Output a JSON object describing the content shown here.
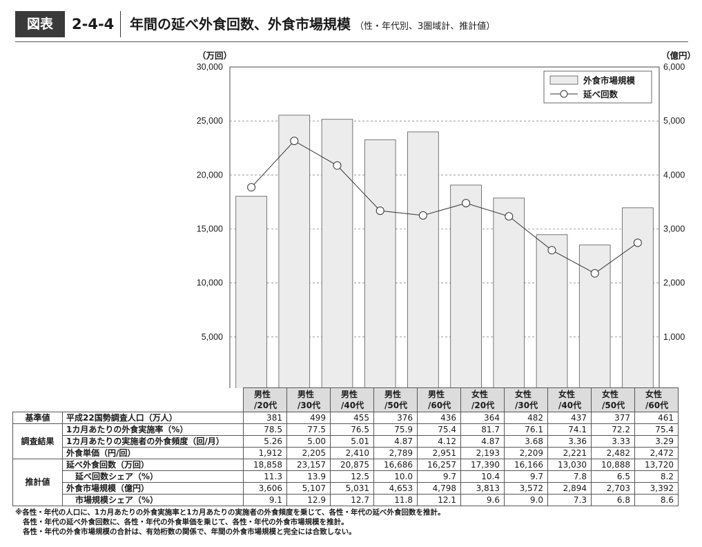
{
  "header": {
    "badge": "図表",
    "number": "2-4-4",
    "title": "年間の延べ外食回数、外食市場規模",
    "subtitle": "（性・年代別、3圏域計、推計値）"
  },
  "chart_data": {
    "type": "bar",
    "categories": [
      "男性/20代",
      "男性/30代",
      "男性/40代",
      "男性/50代",
      "男性/60代",
      "女性/20代",
      "女性/30代",
      "女性/40代",
      "女性/50代",
      "女性/60代"
    ],
    "category_lines": [
      [
        "男性",
        "/20代"
      ],
      [
        "男性",
        "/30代"
      ],
      [
        "男性",
        "/40代"
      ],
      [
        "男性",
        "/50代"
      ],
      [
        "男性",
        "/60代"
      ],
      [
        "女性",
        "/20代"
      ],
      [
        "女性",
        "/30代"
      ],
      [
        "女性",
        "/40代"
      ],
      [
        "女性",
        "/50代"
      ],
      [
        "女性",
        "/60代"
      ]
    ],
    "series": [
      {
        "name": "外食市場規模",
        "kind": "bar",
        "axis": "right",
        "values": [
          3606,
          5107,
          5031,
          4653,
          4798,
          3813,
          3572,
          2894,
          2703,
          3392
        ]
      },
      {
        "name": "延べ回数",
        "kind": "line",
        "axis": "left",
        "values": [
          18858,
          23157,
          20875,
          16686,
          16257,
          17390,
          16166,
          13030,
          10888,
          13720
        ]
      }
    ],
    "left_axis": {
      "unit": "（万回）",
      "ylim": [
        0,
        30000
      ],
      "ticks": [
        "30,000",
        "25,000",
        "20,000",
        "15,000",
        "10,000",
        "5,000"
      ]
    },
    "right_axis": {
      "unit": "（億円）",
      "ylim": [
        0,
        6000
      ],
      "ticks": [
        "6,000",
        "5,000",
        "4,000",
        "3,000",
        "2,000",
        "1,000",
        "0"
      ]
    },
    "grid": "dashed horizontal",
    "legend_position": "top-right",
    "colors": {
      "bar_fill": "#ececec",
      "bar_stroke": "#555555",
      "line": "#333333"
    }
  },
  "table": {
    "groups": [
      {
        "label": "基準値",
        "rows": [
          {
            "label": "平成22国勢調査人口（万人）",
            "values": [
              "381",
              "499",
              "455",
              "376",
              "436",
              "364",
              "482",
              "437",
              "377",
              "461"
            ]
          }
        ]
      },
      {
        "label": "調査結果",
        "rows": [
          {
            "label": "1カ月あたりの外食実施率（%）",
            "values": [
              "78.5",
              "77.5",
              "76.5",
              "75.9",
              "75.4",
              "81.7",
              "76.1",
              "74.1",
              "72.2",
              "75.4"
            ]
          },
          {
            "label": "1カ月あたりの実施者の外食頻度（回/月）",
            "values": [
              "5.26",
              "5.00",
              "5.01",
              "4.87",
              "4.12",
              "4.87",
              "3.68",
              "3.36",
              "3.33",
              "3.29"
            ]
          },
          {
            "label": "外食単価（円/回）",
            "values": [
              "1,912",
              "2,205",
              "2,410",
              "2,789",
              "2,951",
              "2,193",
              "2,209",
              "2,221",
              "2,482",
              "2,472"
            ]
          }
        ]
      },
      {
        "label": "推計値",
        "rows": [
          {
            "label": "延べ外食回数（万回）",
            "values": [
              "18,858",
              "23,157",
              "20,875",
              "16,686",
              "16,257",
              "17,390",
              "16,166",
              "13,030",
              "10,888",
              "13,720"
            ]
          },
          {
            "label": "延べ回数シェア（%）",
            "indent": true,
            "values": [
              "11.3",
              "13.9",
              "12.5",
              "10.0",
              "9.7",
              "10.4",
              "9.7",
              "7.8",
              "6.5",
              "8.2"
            ]
          },
          {
            "label": "外食市場規模（億円）",
            "values": [
              "3,606",
              "5,107",
              "5,031",
              "4,653",
              "4,798",
              "3,813",
              "3,572",
              "2,894",
              "2,703",
              "3,392"
            ]
          },
          {
            "label": "市場規模シェア（%）",
            "indent": true,
            "values": [
              "9.1",
              "12.9",
              "12.7",
              "11.8",
              "12.1",
              "9.6",
              "9.0",
              "7.3",
              "6.8",
              "8.6"
            ]
          }
        ]
      }
    ]
  },
  "notes": [
    "※各性・年代の人口に、1カ月あたりの外食実施率と1カ月あたりの実施者の外食頻度を乗じて、各性・年代の延べ外食回数を推計。",
    "各性・年代の延べ外食回数に、各性・年代の外食単価を乗じて、各性・年代の外食市場規模を推計。",
    "各性・年代の外食市場規模の合計は、有効桁数の関係で、年間の外食市場規模と完全には合致しない。"
  ]
}
